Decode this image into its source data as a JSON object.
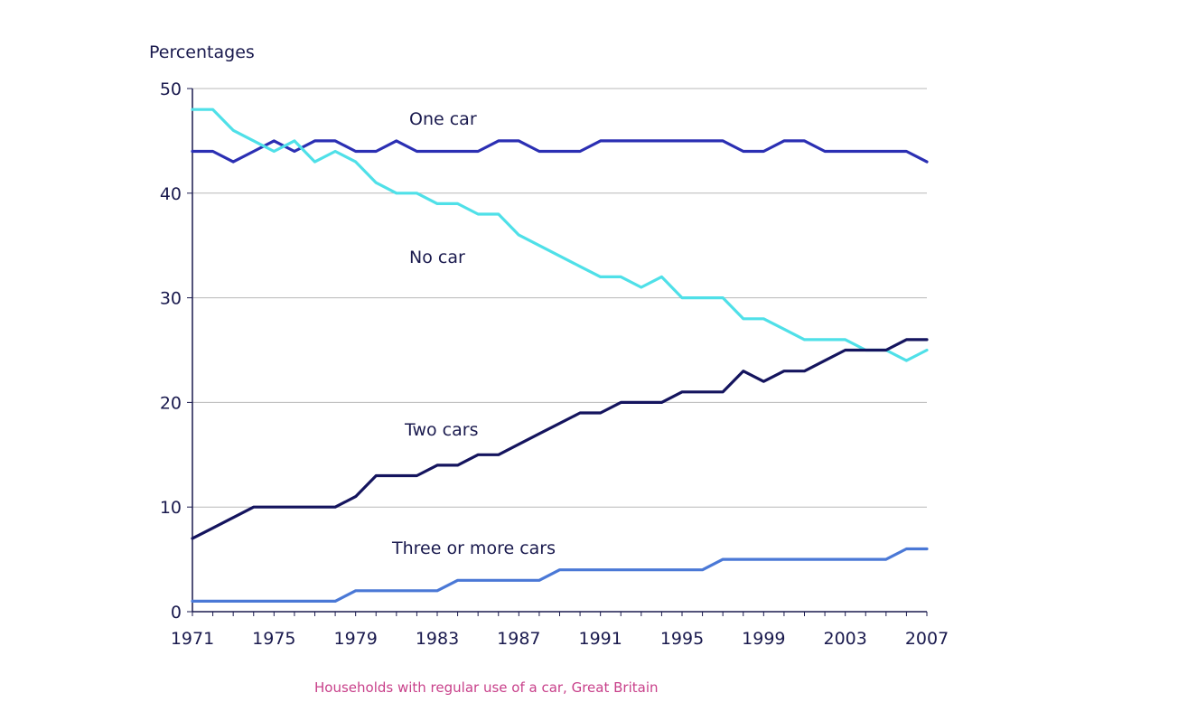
{
  "chart_data": {
    "type": "line",
    "ylabel": "Percentages",
    "caption": "Households with regular use of a car, Great Britain",
    "ylim": [
      0,
      50
    ],
    "xlim": [
      1971,
      2007
    ],
    "y_ticks": [
      "0",
      "10",
      "20",
      "30",
      "40",
      "50"
    ],
    "x_ticks": [
      "1971",
      "1975",
      "1979",
      "1983",
      "1987",
      "1991",
      "1995",
      "1999",
      "2003",
      "2007"
    ],
    "grid": "horizontal",
    "legend": "inline labels",
    "x": [
      1971,
      1972,
      1973,
      1974,
      1975,
      1976,
      1977,
      1978,
      1979,
      1980,
      1981,
      1982,
      1983,
      1984,
      1985,
      1986,
      1987,
      1988,
      1989,
      1990,
      1991,
      1992,
      1993,
      1994,
      1995,
      1996,
      1997,
      1998,
      1999,
      2000,
      2001,
      2002,
      2003,
      2004,
      2005,
      2006,
      2007
    ],
    "series": [
      {
        "name": "One car",
        "color": "#2b2fb3",
        "values": [
          44,
          44,
          43,
          44,
          45,
          44,
          45,
          45,
          44,
          44,
          45,
          44,
          44,
          44,
          44,
          45,
          45,
          44,
          44,
          44,
          45,
          45,
          45,
          45,
          45,
          45,
          45,
          44,
          44,
          45,
          45,
          44,
          44,
          44,
          44,
          44,
          43
        ]
      },
      {
        "name": "No car",
        "color": "#4fe0e8",
        "values": [
          48,
          48,
          46,
          45,
          44,
          45,
          43,
          44,
          43,
          41,
          40,
          40,
          39,
          39,
          38,
          38,
          36,
          35,
          34,
          33,
          32,
          32,
          31,
          32,
          30,
          30,
          30,
          28,
          28,
          27,
          26,
          26,
          26,
          25,
          25,
          24,
          25
        ]
      },
      {
        "name": "Two cars",
        "color": "#14145e",
        "values": [
          7,
          8,
          9,
          10,
          10,
          10,
          10,
          10,
          11,
          13,
          13,
          13,
          14,
          14,
          15,
          15,
          16,
          17,
          18,
          19,
          19,
          20,
          20,
          20,
          21,
          21,
          21,
          23,
          22,
          23,
          23,
          24,
          25,
          25,
          25,
          26,
          26
        ]
      },
      {
        "name": "Three or more cars",
        "color": "#4a78d6",
        "values": [
          1,
          1,
          1,
          1,
          1,
          1,
          1,
          1,
          2,
          2,
          2,
          2,
          2,
          3,
          3,
          3,
          3,
          3,
          4,
          4,
          4,
          4,
          4,
          4,
          4,
          4,
          5,
          5,
          5,
          5,
          5,
          5,
          5,
          5,
          5,
          6,
          6
        ]
      }
    ]
  }
}
